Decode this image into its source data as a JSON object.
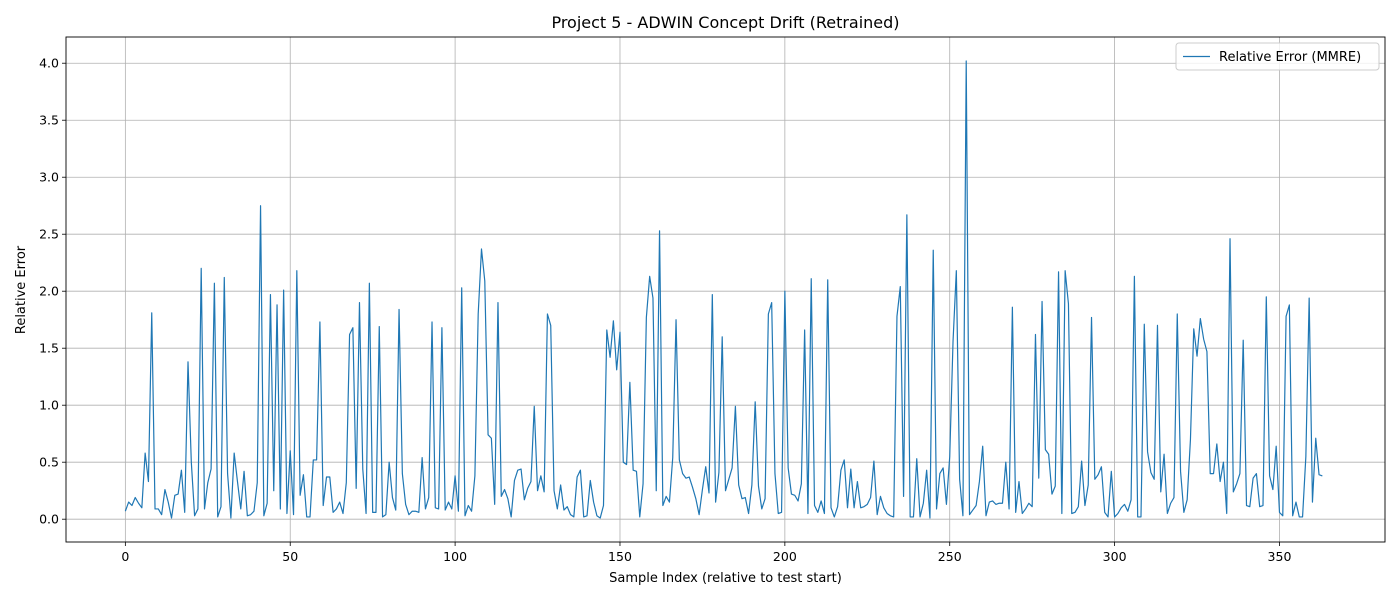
{
  "chart_data": {
    "type": "line",
    "title": "Project 5 - ADWIN Concept Drift (Retrained)",
    "xlabel": "Sample Index (relative to test start)",
    "ylabel": "Relative Error",
    "xlim": [
      -18,
      382
    ],
    "ylim": [
      -0.2,
      4.23
    ],
    "xticks": [
      0,
      50,
      100,
      150,
      200,
      250,
      300,
      350
    ],
    "xtick_labels": [
      "0",
      "50",
      "100",
      "150",
      "200",
      "250",
      "300",
      "350"
    ],
    "yticks": [
      0.0,
      0.5,
      1.0,
      1.5,
      2.0,
      2.5,
      3.0,
      3.5,
      4.0
    ],
    "ytick_labels": [
      "0.0",
      "0.5",
      "1.0",
      "1.5",
      "2.0",
      "2.5",
      "3.0",
      "3.5",
      "4.0"
    ],
    "grid": true,
    "legend_position": "top-right",
    "series": [
      {
        "name": "Relative Error (MMRE)",
        "color": "#1f77b4",
        "x": [
          0,
          1,
          2,
          3,
          4,
          5,
          6,
          7,
          8,
          9,
          10,
          11,
          12,
          13,
          14,
          15,
          16,
          17,
          18,
          19,
          20,
          21,
          22,
          23,
          24,
          25,
          26,
          27,
          28,
          29,
          30,
          31,
          32,
          33,
          34,
          35,
          36,
          37,
          38,
          39,
          40,
          41,
          42,
          43,
          44,
          45,
          46,
          47,
          48,
          49,
          50,
          51,
          52,
          53,
          54,
          55,
          56,
          57,
          58,
          59,
          60,
          61,
          62,
          63,
          64,
          65,
          66,
          67,
          68,
          69,
          70,
          71,
          72,
          73,
          74,
          75,
          76,
          77,
          78,
          79,
          80,
          81,
          82,
          83,
          84,
          85,
          86,
          87,
          88,
          89,
          90,
          91,
          92,
          93,
          94,
          95,
          96,
          97,
          98,
          99,
          100,
          101,
          102,
          103,
          104,
          105,
          106,
          107,
          108,
          109,
          110,
          111,
          112,
          113,
          114,
          115,
          116,
          117,
          118,
          119,
          120,
          121,
          122,
          123,
          124,
          125,
          126,
          127,
          128,
          129,
          130,
          131,
          132,
          133,
          134,
          135,
          136,
          137,
          138,
          139,
          140,
          141,
          142,
          143,
          144,
          145,
          146,
          147,
          148,
          149,
          150,
          151,
          152,
          153,
          154,
          155,
          156,
          157,
          158,
          159,
          160,
          161,
          162,
          163,
          164,
          165,
          166,
          167,
          168,
          169,
          170,
          171,
          172,
          173,
          174,
          175,
          176,
          177,
          178,
          179,
          180,
          181,
          182,
          183,
          184,
          185,
          186,
          187,
          188,
          189,
          190,
          191,
          192,
          193,
          194,
          195,
          196,
          197,
          198,
          199,
          200,
          201,
          202,
          203,
          204,
          205,
          206,
          207,
          208,
          209,
          210,
          211,
          212,
          213,
          214,
          215,
          216,
          217,
          218,
          219,
          220,
          221,
          222,
          223,
          224,
          225,
          226,
          227,
          228,
          229,
          230,
          231,
          232,
          233,
          234,
          235,
          236,
          237,
          238,
          239,
          240,
          241,
          242,
          243,
          244,
          245,
          246,
          247,
          248,
          249,
          250,
          251,
          252,
          253,
          254,
          255,
          256,
          257,
          258,
          259,
          260,
          261,
          262,
          263,
          264,
          265,
          266,
          267,
          268,
          269,
          270,
          271,
          272,
          273,
          274,
          275,
          276,
          277,
          278,
          279,
          280,
          281,
          282,
          283,
          284,
          285,
          286,
          287,
          288,
          289,
          290,
          291,
          292,
          293,
          294,
          295,
          296,
          297,
          298,
          299,
          300,
          301,
          302,
          303,
          304,
          305,
          306,
          307,
          308,
          309,
          310,
          311,
          312,
          313,
          314,
          315,
          316,
          317,
          318,
          319,
          320,
          321,
          322,
          323,
          324,
          325,
          326,
          327,
          328,
          329,
          330,
          331,
          332,
          333,
          334,
          335,
          336,
          337,
          338,
          339,
          340,
          341,
          342,
          343,
          344,
          345,
          346,
          347,
          348,
          349,
          350,
          351,
          352,
          353,
          354,
          355,
          356,
          357,
          358,
          359,
          360,
          361,
          362,
          363
        ],
        "y": [
          0.07,
          0.15,
          0.12,
          0.19,
          0.14,
          0.1,
          0.58,
          0.33,
          1.81,
          0.09,
          0.09,
          0.04,
          0.26,
          0.15,
          0.01,
          0.21,
          0.22,
          0.43,
          0.06,
          1.38,
          0.5,
          0.03,
          0.09,
          2.2,
          0.09,
          0.32,
          0.44,
          2.07,
          0.02,
          0.11,
          2.12,
          0.4,
          0.01,
          0.58,
          0.33,
          0.09,
          0.42,
          0.03,
          0.04,
          0.07,
          0.32,
          2.75,
          0.03,
          0.14,
          1.97,
          0.25,
          1.88,
          0.09,
          2.01,
          0.05,
          0.6,
          0.04,
          2.18,
          0.21,
          0.39,
          0.02,
          0.02,
          0.52,
          0.52,
          1.73,
          0.12,
          0.37,
          0.37,
          0.06,
          0.09,
          0.15,
          0.05,
          0.32,
          1.62,
          1.68,
          0.27,
          1.9,
          0.44,
          0.05,
          2.07,
          0.06,
          0.06,
          1.69,
          0.02,
          0.04,
          0.5,
          0.19,
          0.08,
          1.84,
          0.4,
          0.13,
          0.04,
          0.07,
          0.07,
          0.06,
          0.54,
          0.09,
          0.19,
          1.73,
          0.1,
          0.09,
          1.68,
          0.08,
          0.15,
          0.09,
          0.38,
          0.07,
          2.03,
          0.03,
          0.12,
          0.07,
          0.38,
          1.8,
          2.37,
          2.09,
          0.74,
          0.71,
          0.13,
          1.9,
          0.2,
          0.26,
          0.18,
          0.02,
          0.34,
          0.43,
          0.44,
          0.17,
          0.27,
          0.33,
          0.99,
          0.25,
          0.38,
          0.24,
          1.8,
          1.7,
          0.25,
          0.09,
          0.3,
          0.08,
          0.11,
          0.04,
          0.02,
          0.37,
          0.43,
          0.02,
          0.03,
          0.34,
          0.15,
          0.03,
          0.01,
          0.12,
          1.66,
          1.42,
          1.74,
          1.31,
          1.64,
          0.5,
          0.48,
          1.2,
          0.43,
          0.42,
          0.02,
          0.31,
          1.77,
          2.13,
          1.94,
          0.25,
          2.53,
          0.12,
          0.2,
          0.15,
          0.54,
          1.75,
          0.52,
          0.4,
          0.36,
          0.37,
          0.28,
          0.18,
          0.04,
          0.26,
          0.46,
          0.23,
          1.97,
          0.15,
          0.41,
          1.6,
          0.25,
          0.35,
          0.45,
          0.99,
          0.3,
          0.18,
          0.19,
          0.05,
          0.3,
          1.03,
          0.29,
          0.09,
          0.18,
          1.8,
          1.9,
          0.4,
          0.05,
          0.06,
          2.0,
          0.45,
          0.22,
          0.21,
          0.16,
          0.31,
          1.66,
          0.05,
          2.11,
          0.12,
          0.06,
          0.16,
          0.05,
          2.1,
          0.1,
          0.02,
          0.11,
          0.43,
          0.52,
          0.1,
          0.44,
          0.1,
          0.33,
          0.1,
          0.11,
          0.13,
          0.19,
          0.51,
          0.04,
          0.2,
          0.1,
          0.05,
          0.03,
          0.02,
          1.78,
          2.04,
          0.2,
          2.67,
          0.02,
          0.02,
          0.53,
          0.02,
          0.14,
          0.43,
          0.01,
          2.36,
          0.09,
          0.4,
          0.45,
          0.13,
          0.55,
          1.56,
          2.18,
          0.35,
          0.03,
          4.02,
          0.04,
          0.08,
          0.12,
          0.33,
          0.64,
          0.03,
          0.15,
          0.16,
          0.13,
          0.14,
          0.14,
          0.5,
          0.09,
          1.86,
          0.06,
          0.33,
          0.05,
          0.09,
          0.14,
          0.11,
          1.62,
          0.36,
          1.91,
          0.61,
          0.57,
          0.22,
          0.29,
          2.17,
          0.05,
          2.18,
          1.89,
          0.05,
          0.06,
          0.11,
          0.51,
          0.12,
          0.3,
          1.77,
          0.35,
          0.39,
          0.46,
          0.06,
          0.02,
          0.42,
          0.02,
          0.05,
          0.1,
          0.13,
          0.07,
          0.17,
          2.13,
          0.02,
          0.02,
          1.71,
          0.59,
          0.41,
          0.35,
          1.7,
          0.24,
          0.57,
          0.05,
          0.14,
          0.19,
          1.8,
          0.42,
          0.06,
          0.17,
          0.7,
          1.67,
          1.43,
          1.76,
          1.58,
          1.47,
          0.4,
          0.4,
          0.66,
          0.33,
          0.5,
          0.05,
          2.46,
          0.24,
          0.31,
          0.4,
          1.57,
          0.12,
          0.11,
          0.36,
          0.4,
          0.11,
          0.12,
          1.95,
          0.38,
          0.26,
          0.64,
          0.06,
          0.03,
          1.78,
          1.88,
          0.03,
          0.15,
          0.02,
          0.02,
          0.55,
          1.94,
          0.15,
          0.71,
          0.39,
          0.38
        ]
      }
    ]
  }
}
